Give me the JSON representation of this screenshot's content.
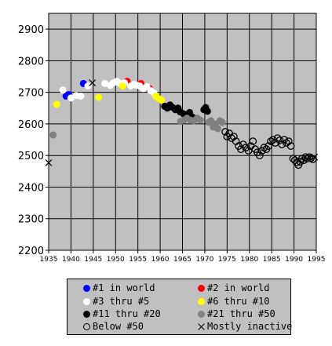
{
  "chart_data": {
    "type": "scatter",
    "title": "",
    "xlabel": "",
    "ylabel": "",
    "xlim": [
      1935,
      1995
    ],
    "ylim": [
      2200,
      2950
    ],
    "x_ticks": [
      1935,
      1940,
      1945,
      1950,
      1955,
      1960,
      1965,
      1970,
      1975,
      1980,
      1985,
      1990,
      1995
    ],
    "y_ticks": [
      2200,
      2300,
      2400,
      2500,
      2600,
      2700,
      2800,
      2900
    ],
    "grid": true,
    "legend_position": "bottom",
    "series": [
      {
        "name": "#1 in world",
        "color": "#0000ff",
        "marker": "filled-circle",
        "points": [
          [
            1938.9,
            2688
          ],
          [
            1939.5,
            2693
          ],
          [
            1942.8,
            2728
          ]
        ]
      },
      {
        "name": "#2 in world",
        "color": "#ff0000",
        "marker": "filled-circle",
        "points": [
          [
            1952.6,
            2735
          ],
          [
            1955.7,
            2728
          ],
          [
            1957.6,
            2712
          ]
        ]
      },
      {
        "name": "#3 thru #5",
        "color": "#ffffff",
        "marker": "filled-circle",
        "points": [
          [
            1938.2,
            2707
          ],
          [
            1940.0,
            2682
          ],
          [
            1941.2,
            2690
          ],
          [
            1942.2,
            2688
          ],
          [
            1943.8,
            2720
          ],
          [
            1947.6,
            2728
          ],
          [
            1948.8,
            2722
          ],
          [
            1949.5,
            2730
          ],
          [
            1950.3,
            2735
          ],
          [
            1951.0,
            2728
          ],
          [
            1952.0,
            2730
          ],
          [
            1953.4,
            2720
          ],
          [
            1954.1,
            2725
          ],
          [
            1954.8,
            2722
          ],
          [
            1955.4,
            2720
          ],
          [
            1956.2,
            2712
          ],
          [
            1957.0,
            2718
          ],
          [
            1957.9,
            2705
          ],
          [
            1958.6,
            2698
          ]
        ]
      },
      {
        "name": "#6 thru #10",
        "color": "#ffff00",
        "marker": "filled-circle",
        "points": [
          [
            1936.8,
            2662
          ],
          [
            1946.2,
            2684
          ],
          [
            1951.6,
            2720
          ],
          [
            1959.0,
            2688
          ],
          [
            1959.7,
            2680
          ],
          [
            1960.3,
            2675
          ]
        ]
      },
      {
        "name": "#11 thru #20",
        "color": "#000000",
        "marker": "filled-circle",
        "points": [
          [
            1961.0,
            2656
          ],
          [
            1961.6,
            2650
          ],
          [
            1962.2,
            2660
          ],
          [
            1962.8,
            2652
          ],
          [
            1963.4,
            2645
          ],
          [
            1964.0,
            2650
          ],
          [
            1964.5,
            2638
          ],
          [
            1965.2,
            2632
          ],
          [
            1965.9,
            2628
          ],
          [
            1966.6,
            2636
          ],
          [
            1967.2,
            2622
          ],
          [
            1969.8,
            2645
          ],
          [
            1970.2,
            2652
          ],
          [
            1970.6,
            2640
          ]
        ]
      },
      {
        "name": "#21 thru #50",
        "color": "#808080",
        "marker": "filled-circle",
        "points": [
          [
            1936.0,
            2565
          ],
          [
            1964.6,
            2608
          ],
          [
            1965.3,
            2612
          ],
          [
            1966.0,
            2618
          ],
          [
            1966.8,
            2612
          ],
          [
            1967.5,
            2610
          ],
          [
            1968.3,
            2618
          ],
          [
            1969.0,
            2612
          ],
          [
            1970.9,
            2605
          ],
          [
            1971.4,
            2610
          ],
          [
            1971.9,
            2590
          ],
          [
            1972.4,
            2600
          ],
          [
            1972.9,
            2585
          ],
          [
            1973.4,
            2610
          ],
          [
            1973.9,
            2605
          ]
        ]
      },
      {
        "name": "Below #50",
        "color": "#000000",
        "marker": "open-circle",
        "points": [
          [
            1974.6,
            2575
          ],
          [
            1975.0,
            2560
          ],
          [
            1975.5,
            2570
          ],
          [
            1976.0,
            2555
          ],
          [
            1976.5,
            2560
          ],
          [
            1977.0,
            2545
          ],
          [
            1977.6,
            2530
          ],
          [
            1978.1,
            2520
          ],
          [
            1978.6,
            2535
          ],
          [
            1979.2,
            2525
          ],
          [
            1979.8,
            2515
          ],
          [
            1980.3,
            2530
          ],
          [
            1980.8,
            2545
          ],
          [
            1981.3,
            2520
          ],
          [
            1981.8,
            2510
          ],
          [
            1982.3,
            2500
          ],
          [
            1982.8,
            2515
          ],
          [
            1983.3,
            2525
          ],
          [
            1983.8,
            2520
          ],
          [
            1984.3,
            2530
          ],
          [
            1984.8,
            2545
          ],
          [
            1985.3,
            2550
          ],
          [
            1985.8,
            2540
          ],
          [
            1986.3,
            2555
          ],
          [
            1986.8,
            2548
          ],
          [
            1987.3,
            2535
          ],
          [
            1987.8,
            2550
          ],
          [
            1988.3,
            2540
          ],
          [
            1988.8,
            2545
          ],
          [
            1989.3,
            2530
          ],
          [
            1989.8,
            2490
          ],
          [
            1990.2,
            2485
          ],
          [
            1990.6,
            2478
          ],
          [
            1991.0,
            2470
          ],
          [
            1991.4,
            2480
          ],
          [
            1991.8,
            2490
          ],
          [
            1992.2,
            2485
          ],
          [
            1992.6,
            2495
          ],
          [
            1993.0,
            2490
          ],
          [
            1993.4,
            2495
          ],
          [
            1993.8,
            2492
          ],
          [
            1994.2,
            2488
          ]
        ]
      },
      {
        "name": "Mostly inactive",
        "color": "#000000",
        "marker": "x",
        "points": [
          [
            1935.0,
            2477
          ],
          [
            1944.8,
            2730
          ],
          [
            1994.6,
            2495
          ]
        ]
      }
    ]
  }
}
